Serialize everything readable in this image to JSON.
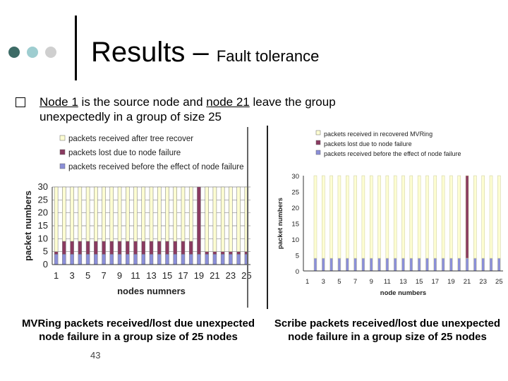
{
  "header": {
    "title_main": "Results – ",
    "title_sub": "Fault tolerance",
    "dot_colors": [
      "#3d6b66",
      "#9ecdd0",
      "#cfcfcf"
    ]
  },
  "bullet": {
    "part1": "Node 1",
    "part2": " is the source node and ",
    "part3": "node 21",
    "part4": " leave the group unexpectedly in a group of size 25"
  },
  "chart_data": [
    {
      "type": "bar",
      "stacked": true,
      "xlabel": "nodes numners",
      "ylabel": "packet numbers",
      "ylim": [
        0,
        30
      ],
      "yticks": [
        0,
        5,
        10,
        15,
        20,
        25,
        30
      ],
      "categories": [
        1,
        2,
        3,
        4,
        5,
        6,
        7,
        8,
        9,
        10,
        11,
        12,
        13,
        14,
        15,
        16,
        17,
        18,
        19,
        20,
        21,
        22,
        23,
        24,
        25
      ],
      "xtick_labels": [
        "1",
        "3",
        "5",
        "7",
        "9",
        "11",
        "13",
        "15",
        "17",
        "19",
        "21",
        "23",
        "25"
      ],
      "legend_position": "top",
      "grid": true,
      "series": [
        {
          "name": "packets received before the effect of node failure",
          "color": "#8b8fd8",
          "values": [
            4,
            4,
            4,
            4,
            4,
            4,
            4,
            4,
            4,
            4,
            4,
            4,
            4,
            4,
            4,
            4,
            4,
            4,
            4,
            4,
            4,
            4,
            4,
            4,
            4
          ]
        },
        {
          "name": "packets lost due to node failure",
          "color": "#8a3a60",
          "values": [
            1,
            5,
            5,
            5,
            5,
            5,
            5,
            5,
            5,
            5,
            5,
            5,
            5,
            5,
            5,
            5,
            5,
            5,
            26,
            1,
            1,
            1,
            1,
            1,
            1
          ]
        },
        {
          "name": "packets received after tree recover",
          "color": "#fdfdd2",
          "values": [
            25,
            21,
            21,
            21,
            21,
            21,
            21,
            21,
            21,
            21,
            21,
            21,
            21,
            21,
            21,
            21,
            21,
            21,
            0,
            25,
            25,
            25,
            25,
            25,
            25
          ]
        }
      ]
    },
    {
      "type": "bar",
      "stacked": true,
      "xlabel": "node numbers",
      "ylabel": "packet numbers",
      "ylim": [
        0,
        30
      ],
      "yticks": [
        0,
        5,
        10,
        15,
        20,
        25,
        30
      ],
      "categories": [
        1,
        2,
        3,
        4,
        5,
        6,
        7,
        8,
        9,
        10,
        11,
        12,
        13,
        14,
        15,
        16,
        17,
        18,
        19,
        20,
        21,
        22,
        23,
        24,
        25
      ],
      "xtick_labels": [
        "1",
        "3",
        "5",
        "7",
        "9",
        "11",
        "13",
        "15",
        "17",
        "19",
        "21",
        "23",
        "25"
      ],
      "legend_position": "top",
      "grid": false,
      "series": [
        {
          "name": "packets received before the effect of node failure",
          "color": "#8b8fd8",
          "values": [
            0,
            4,
            4,
            4,
            4,
            4,
            4,
            4,
            4,
            4,
            4,
            4,
            4,
            4,
            4,
            4,
            4,
            4,
            4,
            4,
            4,
            4,
            4,
            4,
            4
          ]
        },
        {
          "name": "packets lost due to node failure",
          "color": "#8a3a60",
          "values": [
            0,
            0,
            0,
            0,
            0,
            0,
            0,
            0,
            0,
            0,
            0,
            0,
            0,
            0,
            0,
            0,
            0,
            0,
            0,
            0,
            26,
            0,
            0,
            0,
            0
          ]
        },
        {
          "name": "packets received in recovered MVRing",
          "color": "#fdfdd2",
          "values": [
            0,
            26,
            26,
            26,
            26,
            26,
            26,
            26,
            26,
            26,
            26,
            26,
            26,
            26,
            26,
            26,
            26,
            26,
            26,
            26,
            0,
            26,
            26,
            26,
            26
          ]
        }
      ]
    }
  ],
  "captions": {
    "left": "MVRing packets received/lost due unexpected node failure in a group size of 25 nodes",
    "right": "Scribe packets received/lost due unexpected node failure in a group size of 25 nodes"
  },
  "page_number": "43"
}
